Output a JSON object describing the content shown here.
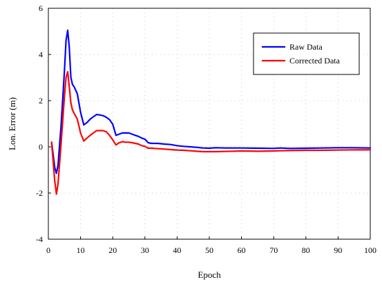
{
  "chart_data": {
    "type": "line",
    "title": "",
    "xlabel": "Epoch",
    "ylabel": "Lon. Error (m)",
    "xlim": [
      0,
      100
    ],
    "ylim": [
      -4,
      6
    ],
    "x_ticks": [
      0,
      10,
      20,
      30,
      40,
      50,
      60,
      70,
      80,
      90,
      100
    ],
    "y_ticks": [
      -4,
      -2,
      0,
      2,
      4,
      6
    ],
    "grid": true,
    "legend_position": "top-right",
    "series": [
      {
        "name": "Raw Data",
        "color": "#0000ff",
        "x": [
          1,
          2,
          2.5,
          3,
          4,
          5,
          5.5,
          6,
          6.5,
          7,
          7.5,
          8,
          9,
          10,
          11,
          12,
          13,
          14,
          15,
          16,
          17,
          18,
          19,
          20,
          21,
          22,
          23,
          24,
          25,
          26,
          27,
          28,
          29,
          30,
          31,
          32,
          34,
          36,
          38,
          40,
          42,
          44,
          46,
          48,
          50,
          52,
          55,
          60,
          65,
          70,
          72,
          75,
          80,
          85,
          90,
          95,
          100
        ],
        "y": [
          0.2,
          -0.9,
          -1.15,
          -0.8,
          1.0,
          3.3,
          4.6,
          5.05,
          4.3,
          3.0,
          2.7,
          2.6,
          2.3,
          1.5,
          0.95,
          1.05,
          1.2,
          1.3,
          1.4,
          1.38,
          1.35,
          1.28,
          1.18,
          0.98,
          0.5,
          0.55,
          0.6,
          0.6,
          0.6,
          0.55,
          0.5,
          0.45,
          0.38,
          0.33,
          0.18,
          0.15,
          0.15,
          0.12,
          0.1,
          0.05,
          0.02,
          0.0,
          -0.02,
          -0.05,
          -0.06,
          -0.04,
          -0.05,
          -0.05,
          -0.06,
          -0.07,
          -0.05,
          -0.07,
          -0.06,
          -0.05,
          -0.04,
          -0.04,
          -0.05
        ]
      },
      {
        "name": "Corrected Data",
        "color": "#ff0000",
        "x": [
          1,
          2,
          2.5,
          3,
          4,
          5,
          5.5,
          6,
          6.5,
          7,
          7.5,
          8,
          9,
          10,
          11,
          12,
          13,
          14,
          15,
          16,
          17,
          18,
          19,
          20,
          21,
          22,
          23,
          24,
          25,
          26,
          27,
          28,
          29,
          30,
          31,
          32,
          34,
          36,
          38,
          40,
          42,
          44,
          46,
          48,
          50,
          52,
          55,
          60,
          65,
          70,
          72,
          75,
          80,
          85,
          90,
          95,
          100
        ],
        "y": [
          0.2,
          -1.5,
          -2.05,
          -1.6,
          0.2,
          2.2,
          3.0,
          3.25,
          2.6,
          1.9,
          1.6,
          1.45,
          1.2,
          0.6,
          0.25,
          0.38,
          0.5,
          0.6,
          0.7,
          0.7,
          0.7,
          0.65,
          0.5,
          0.3,
          0.08,
          0.18,
          0.22,
          0.2,
          0.2,
          0.18,
          0.15,
          0.12,
          0.05,
          0.02,
          -0.06,
          -0.06,
          -0.08,
          -0.1,
          -0.12,
          -0.14,
          -0.15,
          -0.17,
          -0.19,
          -0.21,
          -0.21,
          -0.21,
          -0.2,
          -0.18,
          -0.19,
          -0.18,
          -0.17,
          -0.16,
          -0.15,
          -0.15,
          -0.14,
          -0.13,
          -0.13
        ]
      }
    ]
  }
}
